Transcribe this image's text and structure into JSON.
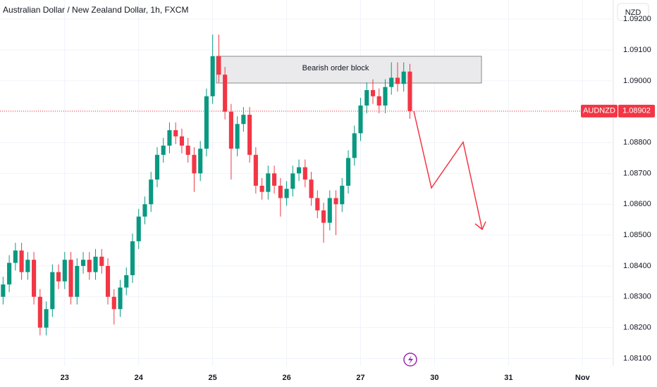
{
  "chart_data": {
    "type": "candlestick",
    "title": "Australian Dollar / New Zealand Dollar, 1h, FXCM",
    "currency": "NZD",
    "symbol": "AUDNZD",
    "last_price": 1.08902,
    "annotation": "Bearish order block",
    "up_color": "#089981",
    "down_color": "#f23645",
    "xlim": [
      -0.5,
      99
    ],
    "ylim": [
      1.08076,
      1.09262
    ],
    "xticks": [
      {
        "value": 10,
        "label": "23"
      },
      {
        "value": 22,
        "label": "24"
      },
      {
        "value": 34,
        "label": "25"
      },
      {
        "value": 46,
        "label": "26"
      },
      {
        "value": 58,
        "label": "27"
      },
      {
        "value": 70,
        "label": "30"
      },
      {
        "value": 82,
        "label": "31"
      },
      {
        "value": 94,
        "label": "Nov"
      }
    ],
    "yticks": [
      {
        "value": 1.081,
        "label": "1.08100"
      },
      {
        "value": 1.082,
        "label": "1.08200"
      },
      {
        "value": 1.083,
        "label": "1.08300"
      },
      {
        "value": 1.084,
        "label": "1.08400"
      },
      {
        "value": 1.085,
        "label": "1.08500"
      },
      {
        "value": 1.086,
        "label": "1.08600"
      },
      {
        "value": 1.087,
        "label": "1.08700"
      },
      {
        "value": 1.088,
        "label": "1.08800"
      },
      {
        "value": 1.089,
        "label": "1.08900"
      },
      {
        "value": 1.09,
        "label": "1.09000"
      },
      {
        "value": 1.091,
        "label": "1.09100"
      },
      {
        "value": 1.092,
        "label": "1.09200"
      }
    ],
    "open": [
      1.083,
      1.0834,
      1.0841,
      1.0845,
      1.0838,
      1.0842,
      1.083,
      1.082,
      1.0826,
      1.0838,
      1.0835,
      1.0842,
      1.083,
      1.084,
      1.0842,
      1.0838,
      1.0843,
      1.084,
      1.083,
      1.0826,
      1.0833,
      1.0837,
      1.0848,
      1.0856,
      1.086,
      1.0868,
      1.0876,
      1.0879,
      1.0884,
      1.0882,
      1.0879,
      1.0876,
      1.087,
      1.0878,
      1.0895,
      1.0908,
      1.0902,
      1.089,
      1.0878,
      1.0886,
      1.0889,
      1.0876,
      1.0866,
      1.0864,
      1.087,
      1.0866,
      1.0862,
      1.0865,
      1.087,
      1.0872,
      1.0868,
      1.0862,
      1.0858,
      1.0854,
      1.0862,
      1.086,
      1.0866,
      1.0875,
      1.0883,
      1.0892,
      1.0897,
      1.0895,
      1.0892,
      1.0898,
      1.0901,
      1.0899,
      1.0903
    ],
    "high": [
      1.08365,
      1.08435,
      1.08475,
      1.08475,
      1.08445,
      1.08445,
      1.08325,
      1.08285,
      1.08405,
      1.08405,
      1.08445,
      1.08445,
      1.08425,
      1.08445,
      1.08445,
      1.08455,
      1.08455,
      1.08425,
      1.08325,
      1.08355,
      1.08395,
      1.08505,
      1.08585,
      1.08625,
      1.08705,
      1.08785,
      1.08815,
      1.08865,
      1.08865,
      1.08845,
      1.08815,
      1.08785,
      1.08805,
      1.08975,
      1.0915,
      1.0915,
      1.09045,
      1.08925,
      1.08885,
      1.08915,
      1.08915,
      1.08785,
      1.08685,
      1.08725,
      1.08725,
      1.08685,
      1.08675,
      1.08725,
      1.08745,
      1.08745,
      1.08705,
      1.08645,
      1.08605,
      1.08645,
      1.08645,
      1.08685,
      1.08775,
      1.08855,
      1.08945,
      1.08995,
      1.09005,
      1.08975,
      1.09005,
      1.0906,
      1.0906,
      1.0906,
      1.09055
    ],
    "low": [
      1.08275,
      1.08315,
      1.08385,
      1.08355,
      1.08355,
      1.08275,
      1.08175,
      1.08175,
      1.08235,
      1.08325,
      1.08325,
      1.08275,
      1.08275,
      1.08375,
      1.08355,
      1.08355,
      1.08375,
      1.08275,
      1.0821,
      1.08235,
      1.08305,
      1.08345,
      1.08455,
      1.08535,
      1.08575,
      1.08655,
      1.08735,
      1.08765,
      1.08795,
      1.08765,
      1.08735,
      1.0864,
      1.08675,
      1.08755,
      1.08925,
      1.08995,
      1.08875,
      1.0868,
      1.08755,
      1.08835,
      1.08735,
      1.08635,
      1.08615,
      1.08615,
      1.08635,
      1.0856,
      1.08595,
      1.08625,
      1.08675,
      1.08655,
      1.08595,
      1.08555,
      1.08475,
      1.08515,
      1.085,
      1.08575,
      1.08635,
      1.08725,
      1.08805,
      1.08895,
      1.08925,
      1.08895,
      1.08895,
      1.08955,
      1.08965,
      1.08965,
      1.08877
    ],
    "close": [
      1.0834,
      1.0841,
      1.0845,
      1.0838,
      1.0842,
      1.083,
      1.082,
      1.0826,
      1.0838,
      1.0835,
      1.0842,
      1.083,
      1.084,
      1.0842,
      1.0838,
      1.0843,
      1.084,
      1.083,
      1.0826,
      1.0833,
      1.0837,
      1.0848,
      1.0856,
      1.086,
      1.0868,
      1.0876,
      1.0879,
      1.0884,
      1.0882,
      1.0879,
      1.0876,
      1.087,
      1.0878,
      1.0895,
      1.0908,
      1.0902,
      1.089,
      1.0878,
      1.0886,
      1.0889,
      1.0876,
      1.0866,
      1.0864,
      1.087,
      1.0866,
      1.0862,
      1.0865,
      1.087,
      1.0872,
      1.0868,
      1.0862,
      1.0858,
      1.0854,
      1.0862,
      1.086,
      1.0866,
      1.0875,
      1.0883,
      1.0892,
      1.0897,
      1.0895,
      1.0892,
      1.0898,
      1.0901,
      1.0899,
      1.0903,
      1.08902
    ],
    "grid": true
  }
}
